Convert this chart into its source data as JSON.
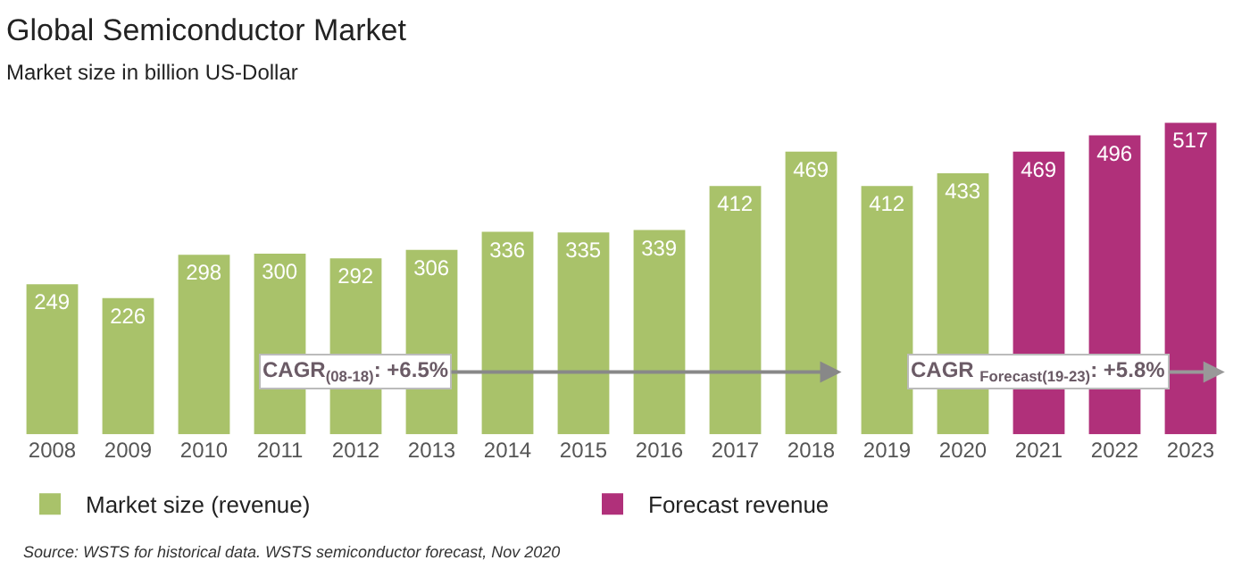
{
  "chart_data": {
    "type": "bar",
    "title": "Global Semiconductor Market",
    "subtitle": "Market size in billion US-Dollar",
    "categories": [
      "2008",
      "2009",
      "2010",
      "2011",
      "2012",
      "2013",
      "2014",
      "2015",
      "2016",
      "2017",
      "2018",
      "2019",
      "2020",
      "2021",
      "2022",
      "2023"
    ],
    "series": [
      {
        "name": "Market size (revenue)",
        "color": "#a9c26a",
        "values": [
          249,
          226,
          298,
          300,
          292,
          306,
          336,
          335,
          339,
          412,
          469,
          412,
          433,
          null,
          null,
          null
        ]
      },
      {
        "name": "Forecast revenue",
        "color": "#b0307a",
        "values": [
          null,
          null,
          null,
          null,
          null,
          null,
          null,
          null,
          null,
          null,
          null,
          null,
          null,
          469,
          496,
          517
        ]
      }
    ],
    "data_labels": true,
    "legend": "bottom left",
    "annotations": [
      "CAGR$_{(08-18)}$: +6.5%",
      "CAGR $_{Forecast(19-23)}$: +5.8%",
      "Source: WSTS for historical data. WSTS semiconductor forecast, Nov 2020"
    ]
  }
}
